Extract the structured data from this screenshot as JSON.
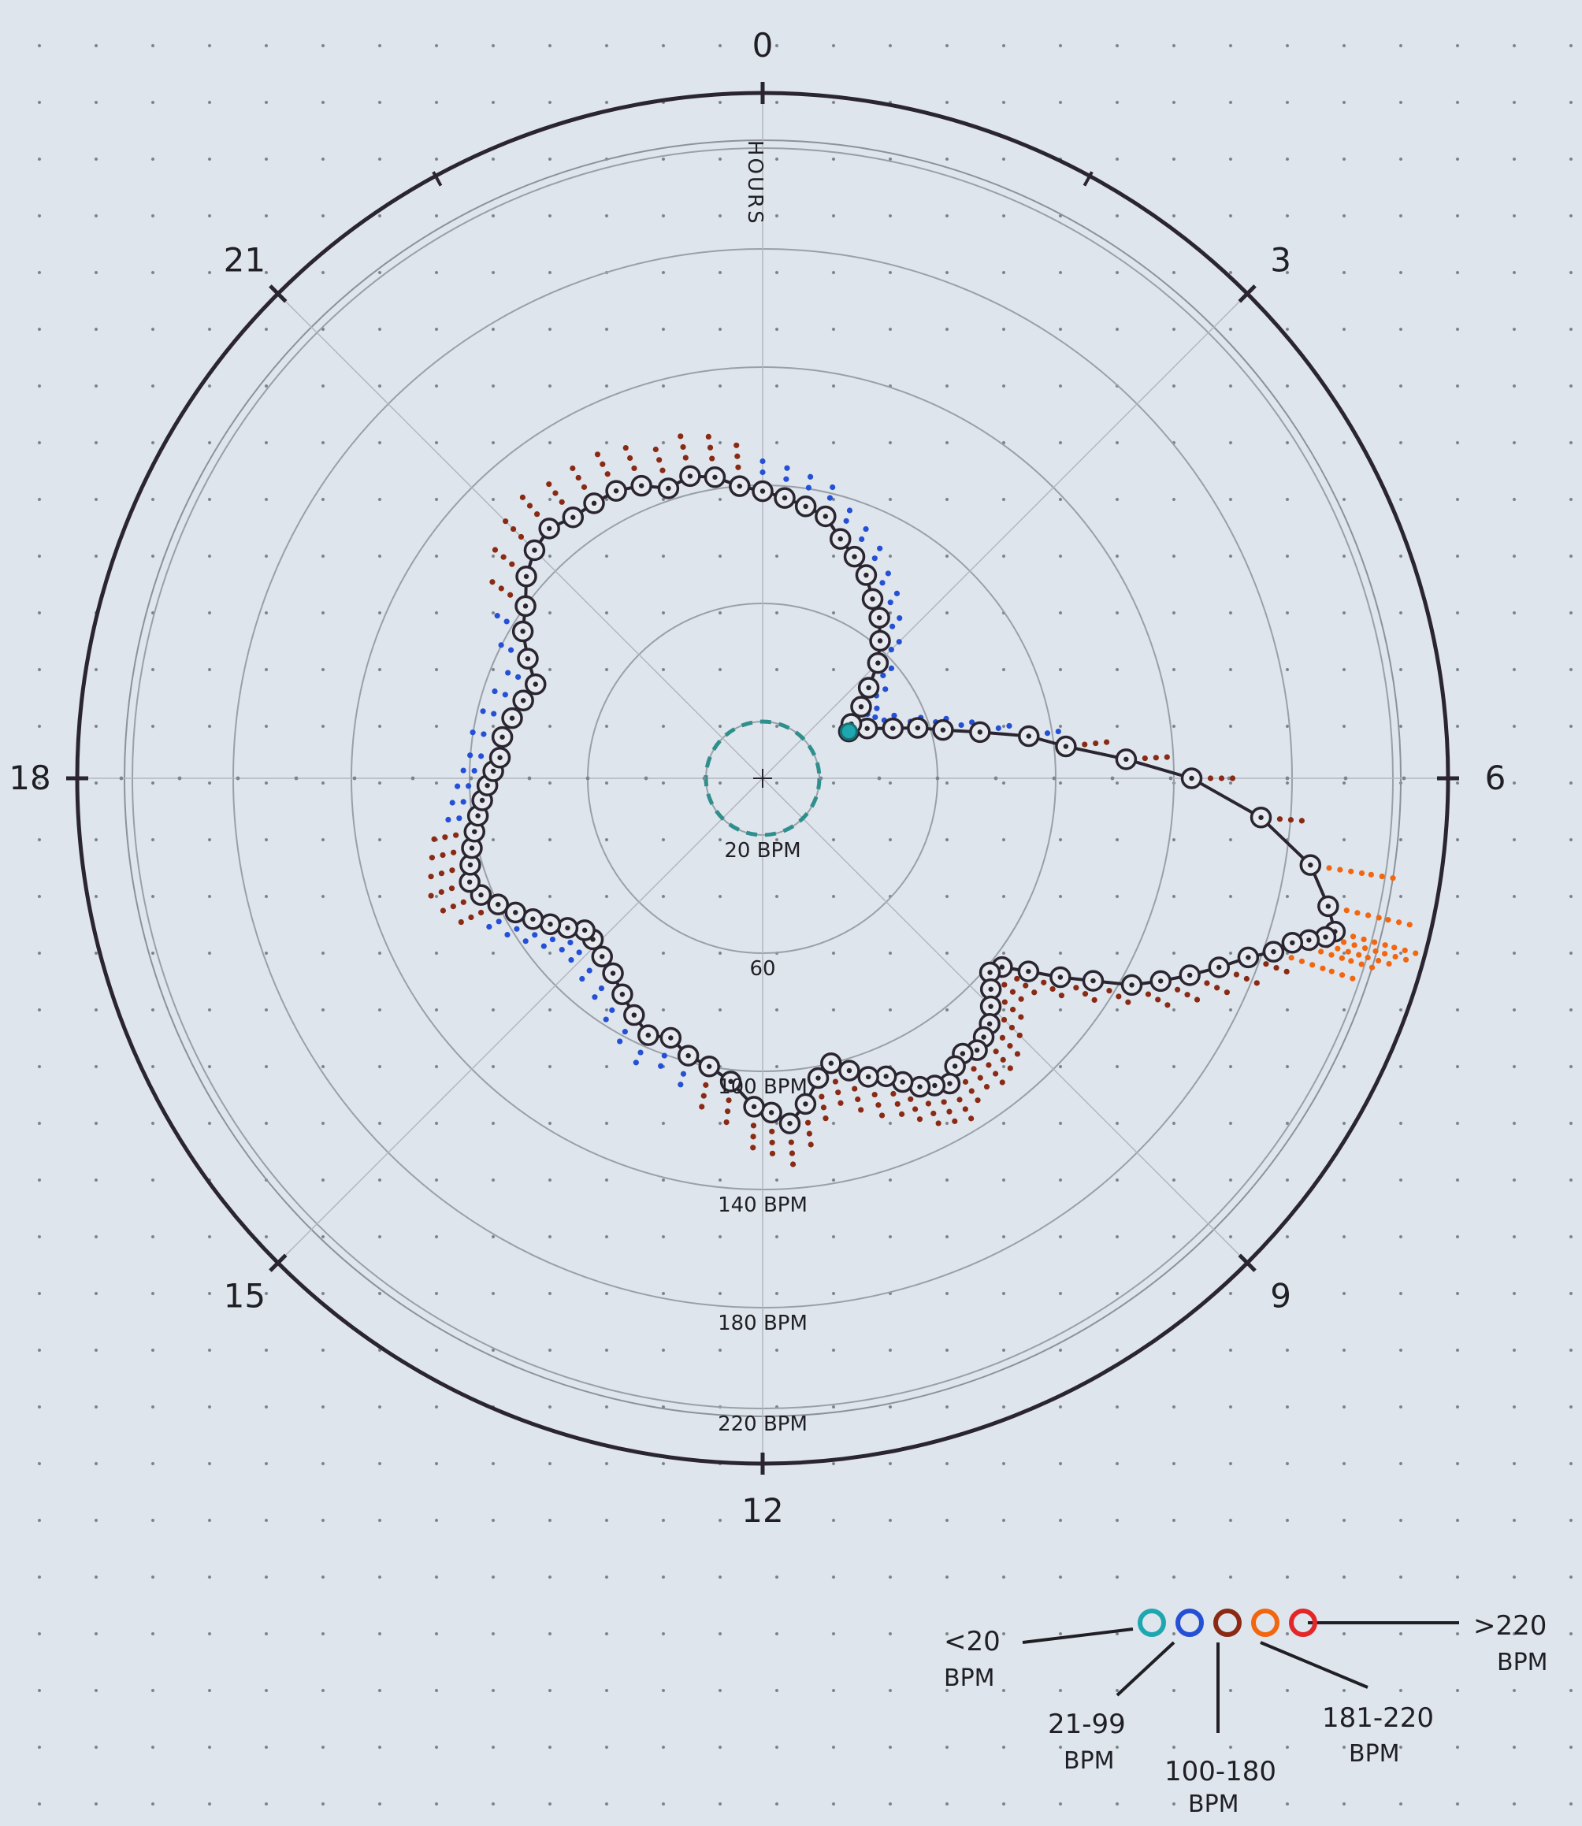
{
  "chart_data": {
    "type": "radial-line",
    "angular_axis": {
      "label": "HOURS",
      "ticks": [
        "0",
        "3",
        "6",
        "9",
        "12",
        "15",
        "18",
        "21"
      ],
      "range": [
        0,
        24
      ],
      "direction": "clockwise",
      "zero_at": "top"
    },
    "radial_axis": {
      "ticks": [
        "20 BPM",
        "60",
        "100 BPM",
        "140 BPM",
        "180 BPM",
        "220 BPM"
      ],
      "tick_values": [
        20,
        60,
        100,
        140,
        180,
        220
      ],
      "range": [
        0,
        260
      ],
      "zero_ring_value": 20
    },
    "series": [
      {
        "hours": [
          4.1,
          4.3,
          4.6,
          4.8,
          5.0,
          5.2,
          5.4,
          5.6,
          5.8,
          6.0,
          6.3,
          6.6,
          6.85,
          7.0,
          7.05,
          7.1,
          7.15,
          7.25,
          7.35,
          7.5,
          7.65,
          7.8,
          7.95,
          8.1,
          8.25,
          8.4,
          8.55,
          8.7,
          8.85,
          9.0,
          9.15,
          9.3,
          9.45,
          9.6,
          9.75,
          9.9,
          10.05,
          10.2,
          10.35,
          10.5,
          10.7,
          10.9,
          11.1,
          11.3,
          11.5,
          11.7,
          11.9,
          12.1,
          12.4,
          12.7,
          13.0,
          13.3,
          13.6,
          13.9,
          14.2,
          14.5,
          14.8,
          15.1,
          15.3,
          15.5,
          15.7,
          15.9,
          16.1,
          16.3,
          16.5,
          16.7,
          16.9,
          17.1,
          17.3,
          17.5,
          17.7,
          17.9,
          18.1,
          18.3,
          18.6,
          18.9,
          19.2,
          19.5,
          19.8,
          20.1,
          20.4,
          20.7,
          21.0,
          21.3,
          21.6,
          21.9,
          22.2,
          22.5,
          22.8,
          23.1,
          23.4,
          23.7,
          0.0,
          0.3,
          0.6,
          0.9,
          1.2,
          1.5,
          1.8,
          2.1,
          2.4,
          2.7,
          3.0,
          3.3,
          3.6,
          3.9
        ],
        "bpm": [
          34,
          40,
          48,
          56,
          64,
          76,
          92,
          104,
          124,
          146,
          170,
          190,
          200,
          205,
          202,
          196,
          190,
          184,
          176,
          168,
          160,
          152,
          144,
          132,
          122,
          112,
          104,
          102,
          106,
          110,
          114,
          116,
          118,
          116,
          118,
          122,
          120,
          118,
          114,
          110,
          108,
          104,
          100,
          104,
          112,
          118,
          114,
          112,
          104,
          100,
          98,
          94,
          96,
          92,
          88,
          84,
          82,
          80,
          80,
          84,
          88,
          92,
          96,
          100,
          104,
          106,
          104,
          102,
          100,
          98,
          96,
          94,
          92,
          90,
          90,
          88,
          86,
          84,
          90,
          96,
          100,
          106,
          110,
          112,
          110,
          110,
          110,
          108,
          104,
          106,
          104,
          100,
          98,
          96,
          94,
          92,
          86,
          82,
          78,
          72,
          68,
          62,
          56,
          48,
          42,
          36
        ]
      }
    ],
    "legend": [
      {
        "label": "<20 BPM",
        "color": "#1fa7b0"
      },
      {
        "label": "21-99 BPM",
        "color": "#2450d6"
      },
      {
        "label": "100-180 BPM",
        "color": "#8a2a14"
      },
      {
        "label": "181-220 BPM",
        "color": "#f2660f"
      },
      {
        "label": ">220 BPM",
        "color": "#e3262a"
      }
    ],
    "colors": {
      "ink": "#2a2530",
      "pencil": "#9aa0a8",
      "core_dash": "#2f8f8c"
    },
    "grid": true
  },
  "legend_text": {
    "lt20_a": "<20",
    "lt20_b": "BPM",
    "c21_a": "21-99",
    "c21_b": "BPM",
    "c100_a": "100-180",
    "c100_b": "BPM",
    "c181_a": "181-220",
    "c181_b": "BPM",
    "gt220_a": ">220",
    "gt220_b": "BPM"
  }
}
